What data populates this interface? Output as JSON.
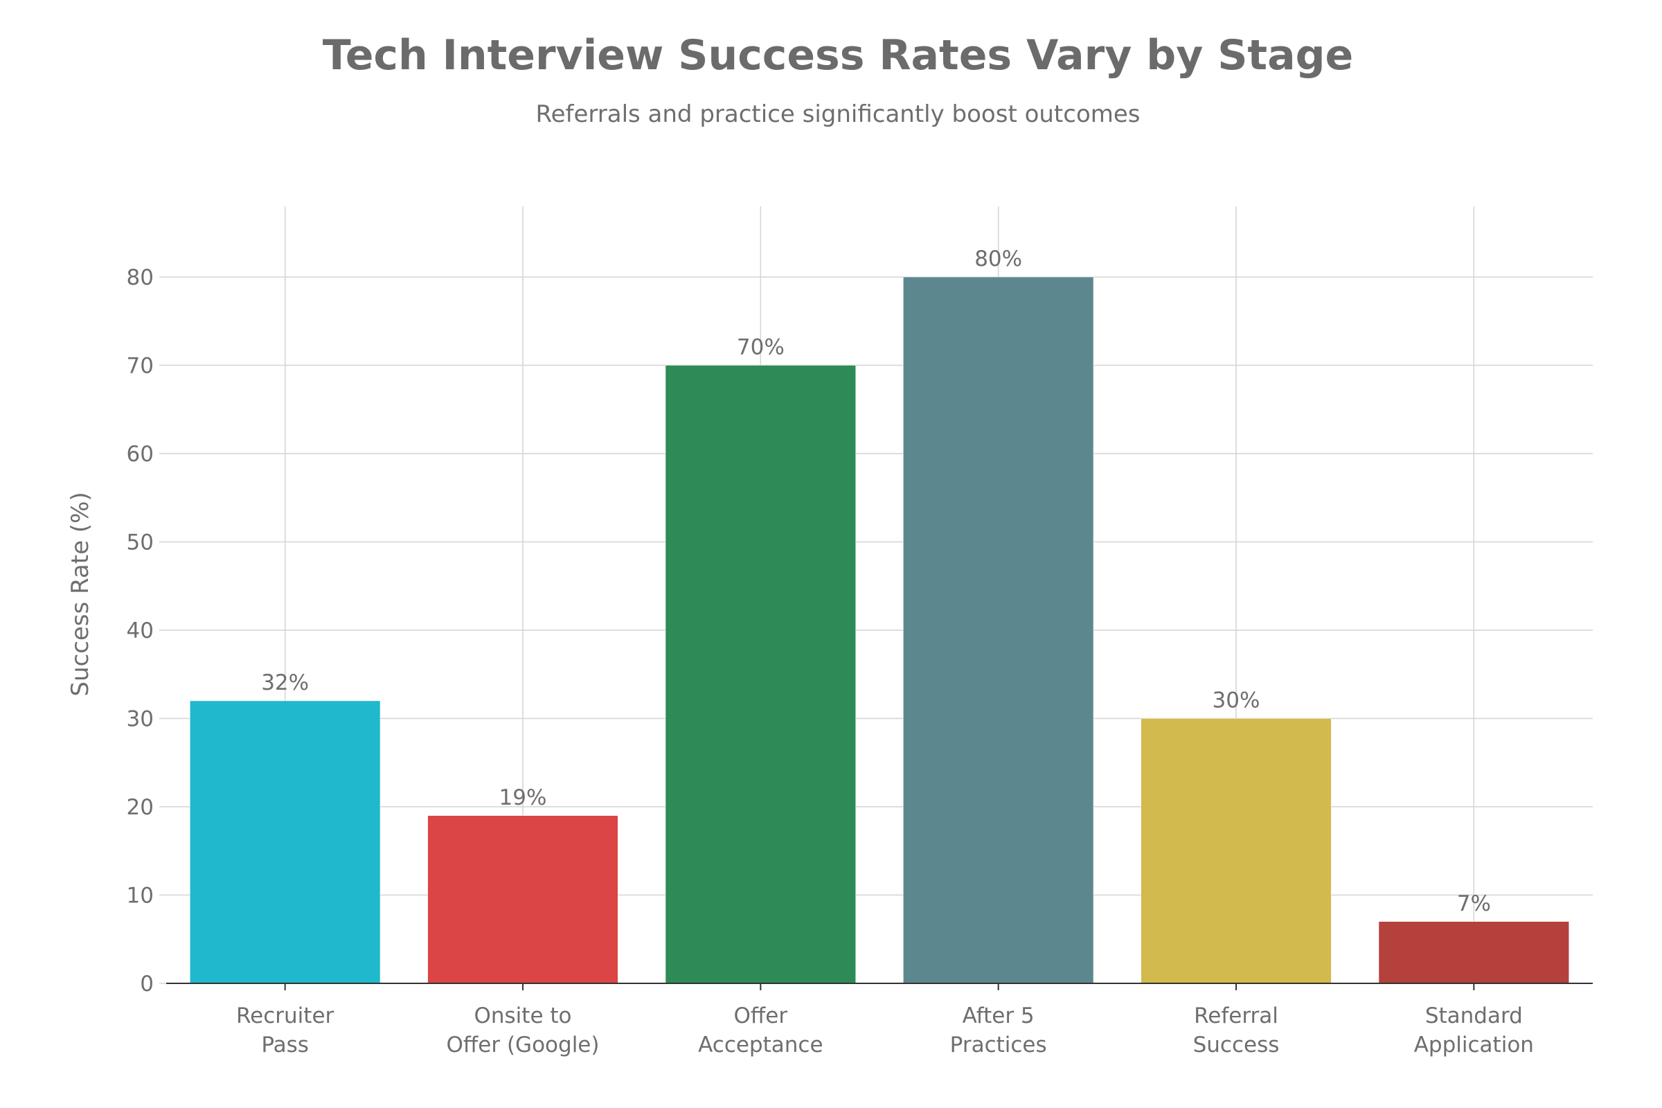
{
  "chart_data": {
    "type": "bar",
    "title": "Tech Interview Success Rates Vary by Stage",
    "subtitle": "Referrals and practice significantly boost outcomes",
    "xlabel": "",
    "ylabel": "Success Rate (%)",
    "ylim": [
      0,
      88
    ],
    "yticks": [
      0,
      10,
      20,
      30,
      40,
      50,
      60,
      70,
      80
    ],
    "grid": true,
    "categories": [
      [
        "Recruiter",
        "Pass"
      ],
      [
        "Onsite to",
        "Offer (Google)"
      ],
      [
        "Offer",
        "Acceptance"
      ],
      [
        "After 5",
        "Practices"
      ],
      [
        "Referral",
        "Success"
      ],
      [
        "Standard",
        "Application"
      ]
    ],
    "values": [
      32,
      19,
      70,
      80,
      30,
      7
    ],
    "data_labels": [
      "32%",
      "19%",
      "70%",
      "80%",
      "30%",
      "7%"
    ],
    "colors": [
      "#1FB8CD",
      "#DB4545",
      "#2E8B57",
      "#5D878F",
      "#D2BA4C",
      "#B4413C"
    ]
  }
}
